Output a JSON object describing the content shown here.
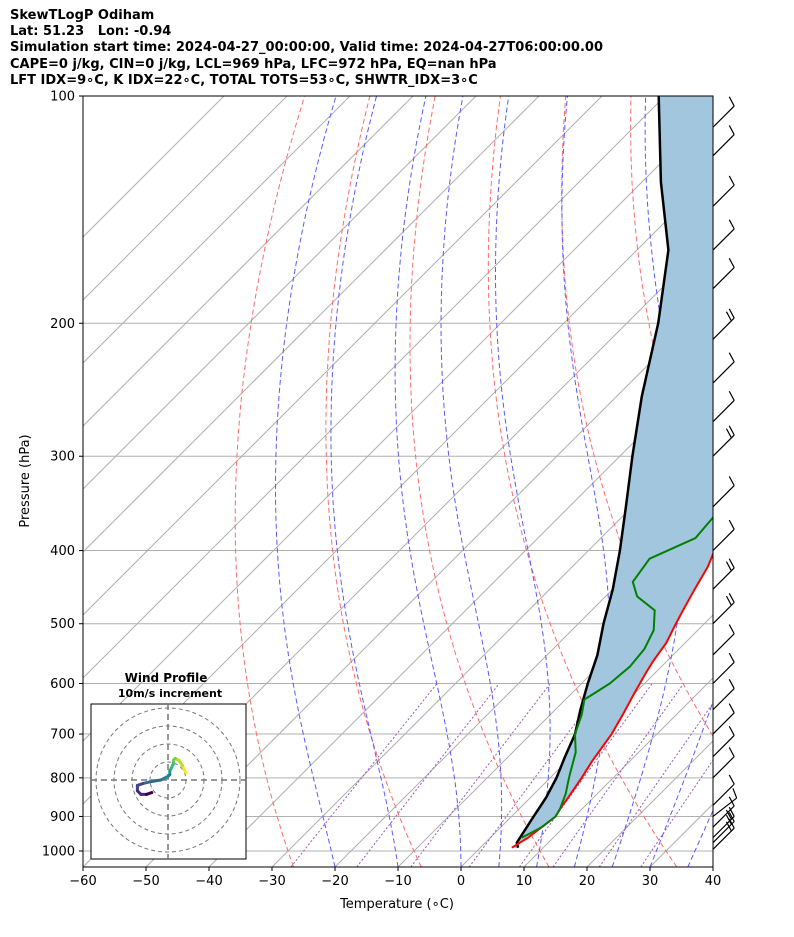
{
  "header": {
    "line1": "SkewTLogP Odiham",
    "line2": "Lat: 51.23   Lon: -0.94",
    "line3": "Simulation start time: 2024-04-27_00:00:00, Valid time: 2024-04-27T06:00:00.00",
    "line4": "CAPE=0 j/kg, CIN=0 j/kg, LCL=969 hPa, LFC=972 hPa, EQ=nan hPa",
    "line5": "LFT IDX=9∘C, K IDX=22∘C, TOTAL TOTS=53∘C, SHWTR_IDX=3∘C"
  },
  "chart_data": [
    {
      "type": "line",
      "subtype": "skew-t log-p",
      "xlabel": "Temperature (∘C)",
      "ylabel": "Pressure (hPa)",
      "xlim": [
        -60,
        40
      ],
      "ylim": [
        1050,
        100
      ],
      "y_scale": "log",
      "skew": "45 degrees",
      "grid": true,
      "x_ticks": [
        "−60",
        "−50",
        "−40",
        "−30",
        "−20",
        "−10",
        "0",
        "10",
        "20",
        "30",
        "40"
      ],
      "y_ticks": [
        "100",
        "200",
        "300",
        "400",
        "500",
        "600",
        "700",
        "800",
        "900",
        "1000"
      ],
      "colors": {
        "temperature": "#ff0000",
        "dewpoint": "#008000",
        "parcel": "#000000",
        "shading": "#a3c6df",
        "dry_adiabats": "#ff6b6b",
        "moist_adiabats": "#5a5aff",
        "mixing_ratio": "#9b59b6"
      },
      "series": [
        {
          "role": "temperature",
          "points": [
            [
              5.0,
              990
            ],
            [
              6.0,
              960
            ],
            [
              7.0,
              900
            ],
            [
              6.5,
              880
            ],
            [
              6.0,
              850
            ],
            [
              5.0,
              800
            ],
            [
              4.0,
              760
            ],
            [
              2.8,
              700
            ],
            [
              1.5,
              660
            ],
            [
              0,
              620
            ],
            [
              -1.5,
              580
            ],
            [
              -2.2,
              560
            ],
            [
              -3.0,
              530
            ],
            [
              -4.5,
              500
            ],
            [
              -5.5,
              480
            ],
            [
              -7.0,
              450
            ],
            [
              -8.5,
              420
            ],
            [
              -10,
              400
            ],
            [
              -12,
              370
            ],
            [
              -14,
              345
            ],
            [
              -16,
              320
            ],
            [
              -18,
              305
            ],
            [
              -19,
              295
            ],
            [
              -18.5,
              285
            ],
            [
              -18,
              280
            ],
            [
              -16,
              275
            ],
            [
              -13,
              265
            ],
            [
              -10,
              260
            ],
            [
              -8,
              255
            ],
            [
              -6.5,
              250
            ],
            [
              -5,
              245
            ],
            [
              -4.5,
              240
            ],
            [
              -4,
              230
            ],
            [
              -3.5,
              220
            ],
            [
              -2.5,
              210
            ],
            [
              -1,
              200
            ],
            [
              0,
              190
            ],
            [
              1,
              180
            ],
            [
              2,
              170
            ],
            [
              3,
              160
            ],
            [
              4,
              150
            ],
            [
              5,
              140
            ],
            [
              6,
              130
            ],
            [
              7,
              120
            ],
            [
              8,
              110
            ],
            [
              9,
              100
            ]
          ]
        },
        {
          "role": "dewpoint",
          "points": [
            [
              5.0,
              960
            ],
            [
              6.5,
              930
            ],
            [
              7.0,
              900
            ],
            [
              6.5,
              880
            ],
            [
              5.0,
              840
            ],
            [
              3.5,
              810
            ],
            [
              2.5,
              790
            ],
            [
              0,
              740
            ],
            [
              -3.0,
              700
            ],
            [
              -5.0,
              660
            ],
            [
              -7.0,
              630
            ],
            [
              -6.0,
              610
            ],
            [
              -5.5,
              600
            ],
            [
              -5,
              570
            ],
            [
              -5.5,
              540
            ],
            [
              -7.0,
              510
            ],
            [
              -10,
              480
            ],
            [
              -15,
              460
            ],
            [
              -18,
              440
            ],
            [
              -19,
              410
            ],
            [
              -15,
              385
            ],
            [
              -15.5,
              360
            ],
            [
              -17,
              340
            ],
            [
              -19,
              310
            ],
            [
              -18,
              290
            ],
            [
              -17,
              275
            ],
            [
              -20,
              255
            ],
            [
              -24,
              240
            ],
            [
              -32,
              225
            ],
            [
              -31,
              215
            ],
            [
              -28,
              200
            ],
            [
              -26,
              190
            ],
            [
              -24,
              180
            ],
            [
              -22,
              170
            ],
            [
              -20,
              160
            ],
            [
              -18,
              150
            ],
            [
              -15,
              140
            ],
            [
              -13,
              130
            ],
            [
              -10,
              120
            ],
            [
              -7,
              110
            ],
            [
              -4,
              100
            ]
          ]
        },
        {
          "role": "parcel",
          "points": [
            [
              6,
              990
            ],
            [
              5,
              975
            ],
            [
              3.5,
              900
            ],
            [
              2.5,
              850
            ],
            [
              1,
              800
            ],
            [
              -1,
              750
            ],
            [
              -3,
              700
            ],
            [
              -6,
              650
            ],
            [
              -9,
              600
            ],
            [
              -12,
              550
            ],
            [
              -16,
              500
            ],
            [
              -20,
              450
            ],
            [
              -25,
              400
            ],
            [
              -31,
              350
            ],
            [
              -38,
              300
            ],
            [
              -46,
              250
            ],
            [
              -55,
              200
            ],
            [
              -65,
              160
            ],
            [
              -77,
              130
            ],
            [
              -91,
              100
            ]
          ]
        }
      ],
      "inset": {
        "title": "Wind Profile",
        "subtitle": "10m/s increment",
        "rings_ms": [
          10,
          20,
          30,
          40
        ],
        "hodograph": [
          [
            10,
            4
          ],
          [
            9,
            6
          ],
          [
            8,
            8
          ],
          [
            6,
            11
          ],
          [
            4,
            12
          ],
          [
            3,
            11
          ],
          [
            3,
            9
          ],
          [
            2,
            7
          ],
          [
            1,
            5
          ],
          [
            1,
            3
          ],
          [
            0,
            2
          ],
          [
            -4,
            0
          ],
          [
            -10,
            -1
          ],
          [
            -14,
            -2
          ],
          [
            -17,
            -3
          ],
          [
            -17,
            -6
          ],
          [
            -15,
            -8
          ],
          [
            -12,
            -8
          ],
          [
            -9,
            -7
          ]
        ]
      },
      "wind_barbs": [
        {
          "p": 995,
          "u": -12,
          "v": -12
        },
        {
          "p": 975,
          "u": -11,
          "v": -11
        },
        {
          "p": 960,
          "u": -11,
          "v": -11
        },
        {
          "p": 930,
          "u": -10,
          "v": -10
        },
        {
          "p": 900,
          "u": -9,
          "v": -7
        },
        {
          "p": 870,
          "u": -6,
          "v": -6
        },
        {
          "p": 800,
          "u": -4,
          "v": -4
        },
        {
          "p": 750,
          "u": -4,
          "v": -4
        },
        {
          "p": 700,
          "u": -5,
          "v": -5
        },
        {
          "p": 650,
          "u": -6,
          "v": -6
        },
        {
          "p": 600,
          "u": -8,
          "v": -8
        },
        {
          "p": 550,
          "u": -9,
          "v": -9
        },
        {
          "p": 500,
          "u": -11,
          "v": -11
        },
        {
          "p": 450,
          "u": -11,
          "v": -11
        },
        {
          "p": 400,
          "u": -10,
          "v": -10
        },
        {
          "p": 350,
          "u": -10,
          "v": -10
        },
        {
          "p": 300,
          "u": -12,
          "v": -12
        },
        {
          "p": 270,
          "u": -10,
          "v": -10
        },
        {
          "p": 240,
          "u": -8,
          "v": -8
        },
        {
          "p": 210,
          "u": -12,
          "v": -12
        },
        {
          "p": 180,
          "u": -10,
          "v": -10
        },
        {
          "p": 160,
          "u": -8,
          "v": -8
        },
        {
          "p": 140,
          "u": -6,
          "v": -6
        },
        {
          "p": 120,
          "u": -5,
          "v": -5
        },
        {
          "p": 110,
          "u": -4,
          "v": -4
        }
      ]
    }
  ]
}
